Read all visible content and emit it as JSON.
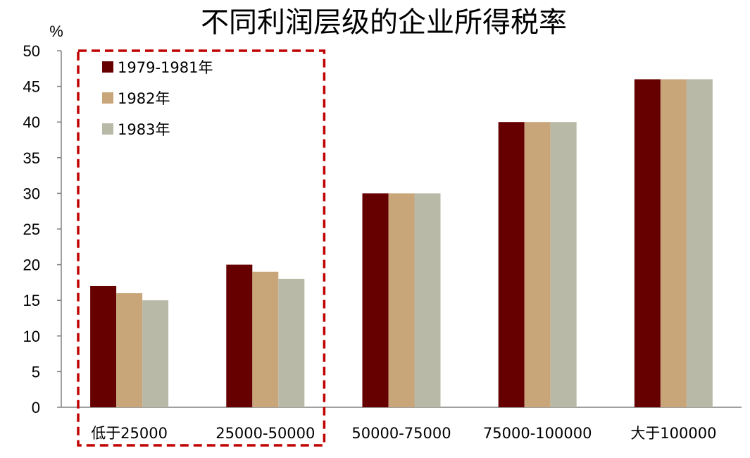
{
  "chart_data": {
    "type": "bar",
    "title": "不同利润层级的企业所得税率",
    "unit_label": "%",
    "xlabel": "",
    "ylabel": "",
    "ylim": [
      0,
      50
    ],
    "yticks": [
      0,
      5,
      10,
      15,
      20,
      25,
      30,
      35,
      40,
      45,
      50
    ],
    "categories": [
      "低于25000",
      "25000-50000",
      "50000-75000",
      "75000-100000",
      "大于100000"
    ],
    "series": [
      {
        "name": "1979-1981年",
        "color": "#660000",
        "values": [
          17,
          20,
          30,
          40,
          46
        ]
      },
      {
        "name": "1982年",
        "color": "#C9A57A",
        "values": [
          16,
          19,
          30,
          40,
          46
        ]
      },
      {
        "name": "1983年",
        "color": "#B9B9A8",
        "values": [
          15,
          18,
          30,
          40,
          46
        ]
      }
    ],
    "legend_position": "top-left",
    "grid": false,
    "highlight_box": {
      "color": "#C00000",
      "style": "dashed",
      "covers_categories": [
        "低于25000",
        "25000-50000"
      ]
    }
  }
}
